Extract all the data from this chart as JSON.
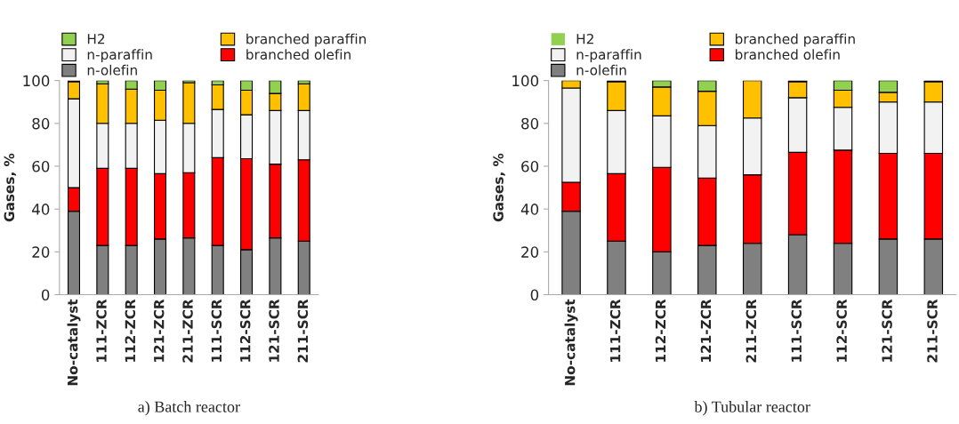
{
  "chart_data": [
    {
      "type": "bar",
      "stacked": true,
      "ylabel": "Gases, %",
      "annotations": [
        "a) Batch reactor"
      ],
      "legend": "top",
      "grid": false,
      "categories": [
        "No-catalyst",
        "111-ZCR",
        "112-ZCR",
        "121-ZCR",
        "211-ZCR",
        "111-SCR",
        "112-SCR",
        "121-SCR",
        "211-SCR"
      ],
      "ylim": [
        0,
        100
      ],
      "yticks": [
        0,
        20,
        40,
        60,
        80,
        100
      ],
      "series": [
        {
          "name": "n-olefin",
          "color": "#808080",
          "values": [
            39,
            23,
            23,
            26,
            26.5,
            23,
            21,
            26.5,
            25
          ]
        },
        {
          "name": "branched olefin",
          "color": "#ff0000",
          "values": [
            11,
            36,
            36,
            30.5,
            30.5,
            41,
            42.5,
            34.5,
            38
          ]
        },
        {
          "name": "n-paraffin",
          "color": "#f2f2f2",
          "values": [
            41.5,
            21,
            21,
            25,
            23,
            22.5,
            20.5,
            25,
            23
          ]
        },
        {
          "name": "branched paraffin",
          "color": "#ffc000",
          "values": [
            8,
            18.5,
            16,
            14,
            19,
            11.5,
            11.5,
            8,
            12.5
          ]
        },
        {
          "name": "H2",
          "color": "#92d050",
          "values": [
            0.5,
            1.5,
            4,
            4.5,
            1,
            2,
            4.5,
            6,
            1.5
          ]
        }
      ]
    },
    {
      "type": "bar",
      "stacked": true,
      "ylabel": "Gases, %",
      "annotations": [
        "b) Tubular reactor"
      ],
      "legend": "top",
      "grid": false,
      "categories": [
        "No-catalyst",
        "111-ZCR",
        "112-ZCR",
        "121-ZCR",
        "211-ZCR",
        "111-SCR",
        "112-SCR",
        "121-SCR",
        "211-SCR"
      ],
      "ylim": [
        0,
        100
      ],
      "yticks": [
        0,
        20,
        40,
        60,
        80,
        100
      ],
      "series": [
        {
          "name": "n-olefin",
          "color": "#808080",
          "values": [
            39,
            25,
            20,
            23,
            24,
            28,
            24,
            26,
            26
          ]
        },
        {
          "name": "branched olefin",
          "color": "#ff0000",
          "values": [
            13.5,
            31.5,
            39.5,
            31.5,
            32,
            38.5,
            43.5,
            40,
            40
          ]
        },
        {
          "name": "n-paraffin",
          "color": "#f2f2f2",
          "values": [
            44,
            29.5,
            24,
            24.5,
            26.5,
            25.5,
            20,
            24,
            24
          ]
        },
        {
          "name": "branched paraffin",
          "color": "#ffc000",
          "values": [
            3.5,
            13.5,
            13.5,
            16,
            17.5,
            7.5,
            8,
            4.5,
            9.5
          ]
        },
        {
          "name": "H2",
          "color": "#92d050",
          "values": [
            0,
            0.5,
            3,
            5,
            0,
            0.5,
            4.5,
            5.5,
            0.5
          ]
        }
      ]
    }
  ]
}
